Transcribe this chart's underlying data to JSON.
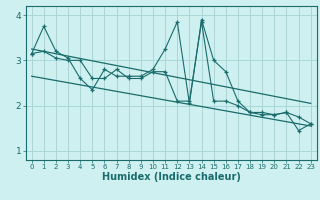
{
  "xlabel": "Humidex (Indice chaleur)",
  "xlim": [
    -0.5,
    23.5
  ],
  "ylim": [
    0.8,
    4.2
  ],
  "yticks": [
    1,
    2,
    3,
    4
  ],
  "xticks": [
    0,
    1,
    2,
    3,
    4,
    5,
    6,
    7,
    8,
    9,
    10,
    11,
    12,
    13,
    14,
    15,
    16,
    17,
    18,
    19,
    20,
    21,
    22,
    23
  ],
  "bg_color": "#cff0f0",
  "grid_color": "#a8d8d8",
  "line_color": "#1a6b6b",
  "series1_x": [
    0,
    1,
    2,
    3,
    4,
    5,
    6,
    7,
    8,
    9,
    10,
    11,
    12,
    13,
    14,
    15,
    16,
    17,
    18,
    19,
    20,
    21,
    22,
    23
  ],
  "series1_y": [
    3.15,
    3.75,
    3.2,
    3.05,
    2.6,
    2.35,
    2.8,
    2.65,
    2.65,
    2.65,
    2.8,
    3.25,
    3.85,
    2.05,
    3.9,
    3.0,
    2.75,
    2.1,
    1.85,
    1.85,
    1.8,
    1.85,
    1.75,
    1.6
  ],
  "series2_x": [
    0,
    1,
    2,
    3,
    4,
    5,
    6,
    7,
    8,
    9,
    10,
    11,
    12,
    13,
    14,
    15,
    16,
    17,
    18,
    19,
    20,
    21,
    22,
    23
  ],
  "series2_y": [
    3.15,
    3.2,
    3.05,
    3.0,
    3.0,
    2.6,
    2.6,
    2.8,
    2.6,
    2.6,
    2.75,
    2.75,
    2.1,
    2.1,
    3.85,
    2.1,
    2.1,
    2.0,
    1.85,
    1.8,
    1.8,
    1.85,
    1.45,
    1.6
  ],
  "trend1_x": [
    0,
    23
  ],
  "trend1_y": [
    3.25,
    2.05
  ],
  "trend2_x": [
    0,
    23
  ],
  "trend2_y": [
    2.65,
    1.55
  ]
}
